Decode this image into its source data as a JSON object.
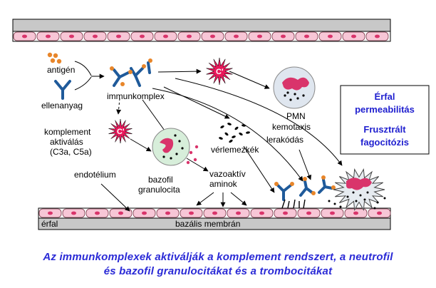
{
  "labels": {
    "antigen": "antigén",
    "antibody": "ellenanyag",
    "immune_complex": "immunkomplex",
    "complement_activation_1": "komplement",
    "complement_activation_2": "aktiválás",
    "complement_activation_3": "(C3a, C5a)",
    "endothelium": "endotélium",
    "basophil_1": "bazofil",
    "basophil_2": "granulocita",
    "platelets": "vérlemezkék",
    "vasoactive_1": "vazoaktív",
    "vasoactive_2": "aminok",
    "pmn_1": "PMN",
    "pmn_2": "kemotaxis",
    "deposition": "lerakódás",
    "vessel_wall": "érfal",
    "basement_membrane": "bazális membrán",
    "c_prime": "C'"
  },
  "info_box": {
    "line1": "Érfal",
    "line2": "permeabilitás",
    "line3": "Frusztrált",
    "line4": "fagocitózis"
  },
  "caption": {
    "line1": "Az immunkomplexek aktiválják a komplement rendszert, a neutrofil",
    "line2": "és bazofil granulocitákat és a trombocitákat"
  },
  "colors": {
    "endothelial_cell": "#f7c6d6",
    "nucleus": "#d9346b",
    "burst": "#e8175a",
    "antibody": "#1f5a9a",
    "text_blue": "#2a2ad6",
    "membrane_gray": "#c8c8c8"
  }
}
